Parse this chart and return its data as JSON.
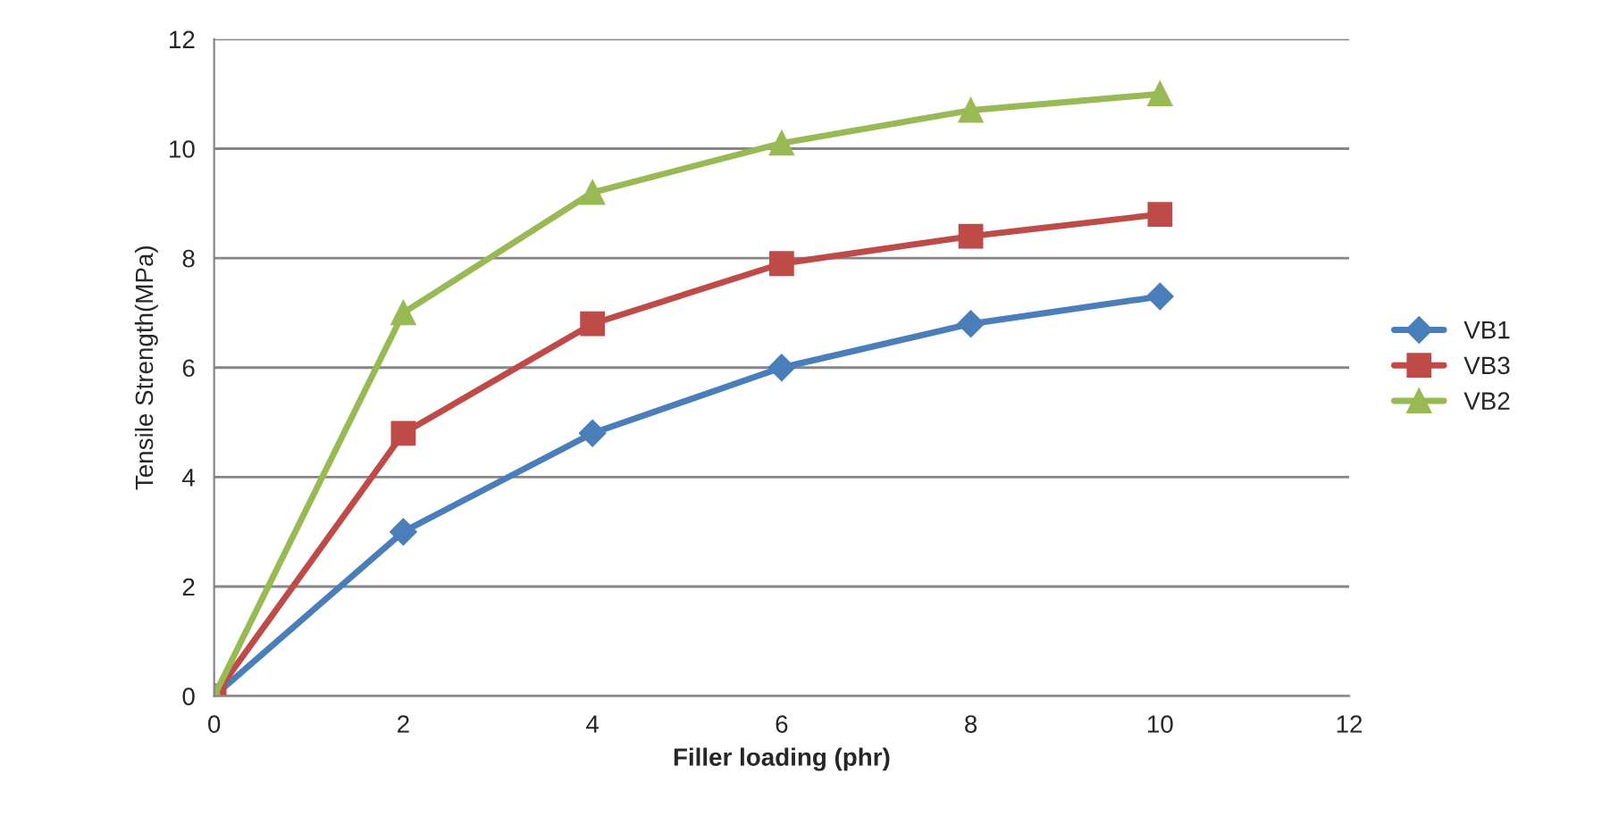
{
  "chart_data": {
    "type": "line",
    "xlabel": "Filler loading (phr)",
    "ylabel": "Tensile Strength(MPa)",
    "x": [
      0,
      2,
      4,
      6,
      8,
      10
    ],
    "series": [
      {
        "name": "VB1",
        "color": "#4a7ebb",
        "marker": "diamond",
        "values": [
          0,
          3.0,
          4.8,
          6.0,
          6.8,
          7.3
        ]
      },
      {
        "name": "VB3",
        "color": "#be4b48",
        "marker": "square",
        "values": [
          0,
          4.8,
          6.8,
          7.9,
          8.4,
          8.8
        ]
      },
      {
        "name": "VB2",
        "color": "#98b954",
        "marker": "triangle",
        "values": [
          0,
          7.0,
          9.2,
          10.1,
          10.7,
          11.0
        ]
      }
    ],
    "xlim": [
      0,
      12
    ],
    "xticks": [
      0,
      2,
      4,
      6,
      8,
      10,
      12
    ],
    "ylim": [
      0,
      12
    ],
    "yticks": [
      0,
      2,
      4,
      6,
      8,
      10,
      12
    ],
    "grid": "y",
    "legend": "right",
    "line_style": "solid"
  }
}
